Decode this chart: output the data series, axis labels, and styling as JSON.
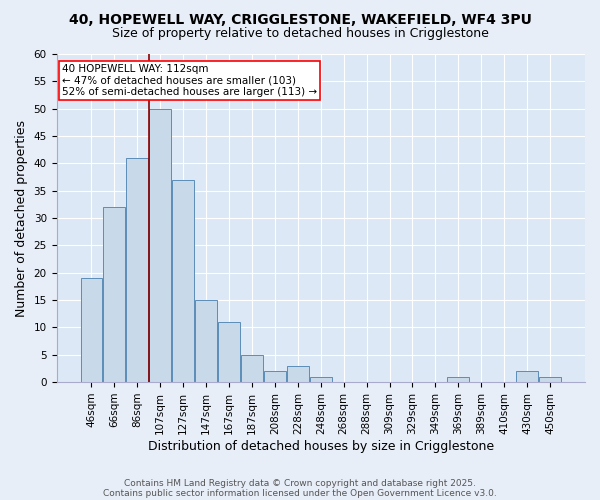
{
  "title1": "40, HOPEWELL WAY, CRIGGLESTONE, WAKEFIELD, WF4 3PU",
  "title2": "Size of property relative to detached houses in Crigglestone",
  "xlabel": "Distribution of detached houses by size in Crigglestone",
  "ylabel": "Number of detached properties",
  "categories": [
    "46sqm",
    "66sqm",
    "86sqm",
    "107sqm",
    "127sqm",
    "147sqm",
    "167sqm",
    "187sqm",
    "208sqm",
    "228sqm",
    "248sqm",
    "268sqm",
    "288sqm",
    "309sqm",
    "329sqm",
    "349sqm",
    "369sqm",
    "389sqm",
    "410sqm",
    "430sqm",
    "450sqm"
  ],
  "values": [
    19,
    32,
    41,
    50,
    37,
    15,
    11,
    5,
    2,
    3,
    1,
    0,
    0,
    0,
    0,
    0,
    1,
    0,
    0,
    2,
    1
  ],
  "bar_color": "#c8daea",
  "bar_edge_color": "#5b8db8",
  "vline_x_index": 3,
  "vline_color": "#8b0000",
  "ylim": [
    0,
    60
  ],
  "yticks": [
    0,
    5,
    10,
    15,
    20,
    25,
    30,
    35,
    40,
    45,
    50,
    55,
    60
  ],
  "annotation_text": "40 HOPEWELL WAY: 112sqm\n← 47% of detached houses are smaller (103)\n52% of semi-detached houses are larger (113) →",
  "annotation_box_color": "white",
  "annotation_edge_color": "red",
  "footer1": "Contains HM Land Registry data © Crown copyright and database right 2025.",
  "footer2": "Contains public sector information licensed under the Open Government Licence v3.0.",
  "bg_color": "#e8eef8",
  "plot_bg_color": "#dce8f5",
  "grid_color": "white",
  "title_fontsize": 10,
  "subtitle_fontsize": 9,
  "axis_label_fontsize": 9,
  "tick_fontsize": 7.5,
  "annotation_fontsize": 7.5,
  "footer_fontsize": 6.5
}
